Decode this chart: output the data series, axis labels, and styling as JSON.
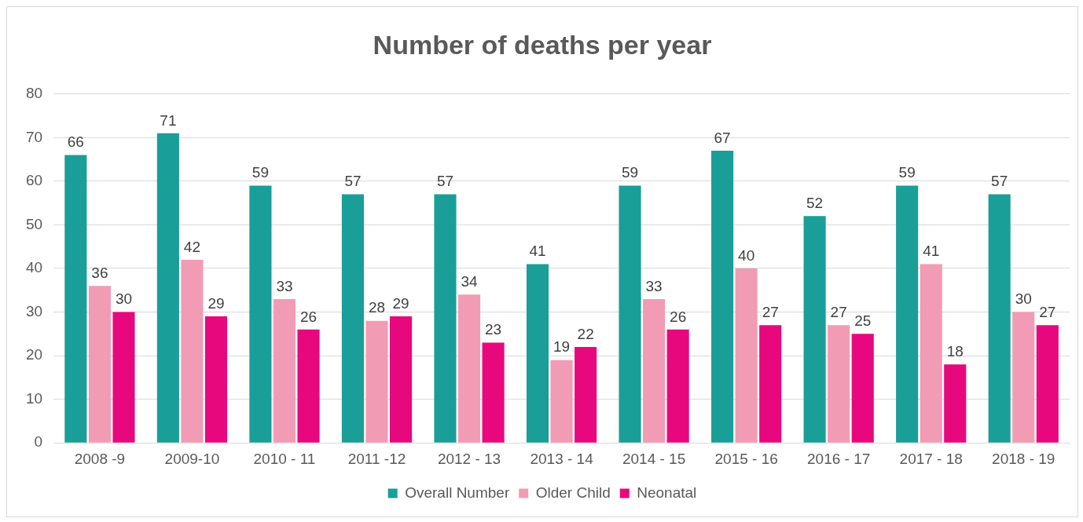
{
  "chart_data": {
    "type": "bar",
    "title": "Number of deaths per year",
    "categories": [
      "2008 -9",
      "2009-10",
      "2010 - 11",
      "2011 -12",
      "2012 - 13",
      "2013 - 14",
      "2014 - 15",
      "2015 - 16",
      "2016 - 17",
      "2017 - 18",
      "2018 - 19"
    ],
    "series": [
      {
        "name": "Overall Number",
        "color": "#1a9e98",
        "values": [
          66,
          71,
          59,
          57,
          57,
          41,
          59,
          67,
          52,
          59,
          57
        ]
      },
      {
        "name": "Older Child",
        "color": "#f29bb4",
        "values": [
          36,
          42,
          33,
          28,
          34,
          19,
          33,
          40,
          27,
          41,
          30
        ]
      },
      {
        "name": "Neonatal",
        "color": "#e8087e",
        "values": [
          30,
          29,
          26,
          29,
          23,
          22,
          26,
          27,
          25,
          18,
          27
        ]
      }
    ],
    "ylim": [
      0,
      80
    ],
    "yticks": [
      0,
      10,
      20,
      30,
      40,
      50,
      60,
      70,
      80
    ],
    "grid": "y",
    "legend": "bottom",
    "data_labels": true
  }
}
